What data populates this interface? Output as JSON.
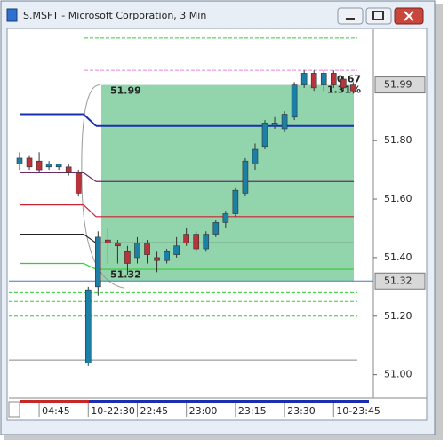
{
  "chart_data": {
    "type": "candlestick",
    "title": "S.MSFT - Microsoft Corporation, 3 Min",
    "categories": [
      null,
      null,
      "04:45",
      null,
      null,
      null,
      null,
      "10-22:30",
      null,
      null,
      null,
      null,
      "22:45",
      null,
      null,
      null,
      null,
      "23:00",
      null,
      null,
      null,
      null,
      "23:15",
      null,
      null,
      null,
      null,
      "23:30",
      null,
      null,
      null,
      null,
      "10-23:45",
      null,
      null
    ],
    "open": [
      51.72,
      51.74,
      51.73,
      51.71,
      51.71,
      51.71,
      51.69,
      51.04,
      51.3,
      51.46,
      51.45,
      51.42,
      51.4,
      51.45,
      51.4,
      51.39,
      51.41,
      51.48,
      51.48,
      51.43,
      51.48,
      51.52,
      51.55,
      51.62,
      51.72,
      51.78,
      51.85,
      51.84,
      51.88,
      51.99,
      52.03,
      51.99,
      52.03,
      52.01,
      51.99
    ],
    "high": [
      51.76,
      51.75,
      51.76,
      51.73,
      51.72,
      51.72,
      51.7,
      51.3,
      51.49,
      51.5,
      51.46,
      51.44,
      51.47,
      51.46,
      51.42,
      51.43,
      51.47,
      51.5,
      51.49,
      51.49,
      51.53,
      51.56,
      51.64,
      51.74,
      51.79,
      51.87,
      51.88,
      51.9,
      52.0,
      52.04,
      52.04,
      52.04,
      52.04,
      52.02,
      52.0
    ],
    "low": [
      51.7,
      51.7,
      51.69,
      51.7,
      51.7,
      51.68,
      51.61,
      51.03,
      51.27,
      51.38,
      51.38,
      51.34,
      51.38,
      51.38,
      51.35,
      51.38,
      51.4,
      51.44,
      51.42,
      51.42,
      51.47,
      51.5,
      51.54,
      51.61,
      51.7,
      51.77,
      51.84,
      51.83,
      51.87,
      51.98,
      51.97,
      51.97,
      51.98,
      51.97,
      51.96
    ],
    "close": [
      51.74,
      51.71,
      51.7,
      51.72,
      51.72,
      51.69,
      51.62,
      51.29,
      51.47,
      51.45,
      51.44,
      51.38,
      51.45,
      51.41,
      51.39,
      51.42,
      51.44,
      51.45,
      51.43,
      51.48,
      51.52,
      51.55,
      51.63,
      51.73,
      51.77,
      51.86,
      51.86,
      51.89,
      51.99,
      52.03,
      51.98,
      52.03,
      51.99,
      51.98,
      51.97
    ],
    "up_color": "#1c7fa6",
    "down_color": "#b8343a",
    "ylim": [
      50.92,
      52.18
    ],
    "yticks": [
      {
        "value": 51,
        "label": "51.00"
      },
      {
        "value": 51.2,
        "label": "51.20"
      },
      {
        "value": 51.4,
        "label": "51.40"
      },
      {
        "value": 51.6,
        "label": "51.60"
      },
      {
        "value": 51.8,
        "label": "51.80"
      }
    ],
    "levels": [
      {
        "color": "#1a2fb0",
        "values": [
          51.89,
          51.85
        ]
      },
      {
        "color": "#6a2a6a",
        "values": [
          51.69,
          51.66
        ]
      },
      {
        "color": "#cc2233",
        "values": [
          51.58,
          51.54
        ]
      },
      {
        "color": "#222222",
        "values": [
          51.48,
          51.45
        ]
      },
      {
        "color": "#33cc33",
        "values": [
          51.38,
          51.36
        ]
      }
    ],
    "dashed_levels": [
      {
        "color": "#33cc33",
        "value": 52.15
      },
      {
        "color": "#dd88dd",
        "value": 52.04
      },
      {
        "color": "#33cc33",
        "value": 51.28
      },
      {
        "color": "#33cc33",
        "value": 51.25
      },
      {
        "color": "#33cc33",
        "value": 51.2
      },
      {
        "color": "#888888",
        "value": 51.05
      }
    ],
    "measure": {
      "values": [
        51.99,
        51.32
      ],
      "value_labels": [
        "51.99",
        "51.32"
      ],
      "change": "0.67",
      "percent": "1.31%"
    },
    "price_tags": [
      {
        "value": 51.99,
        "label": "51.99"
      },
      {
        "value": 51.32,
        "label": "51.32"
      }
    ]
  }
}
